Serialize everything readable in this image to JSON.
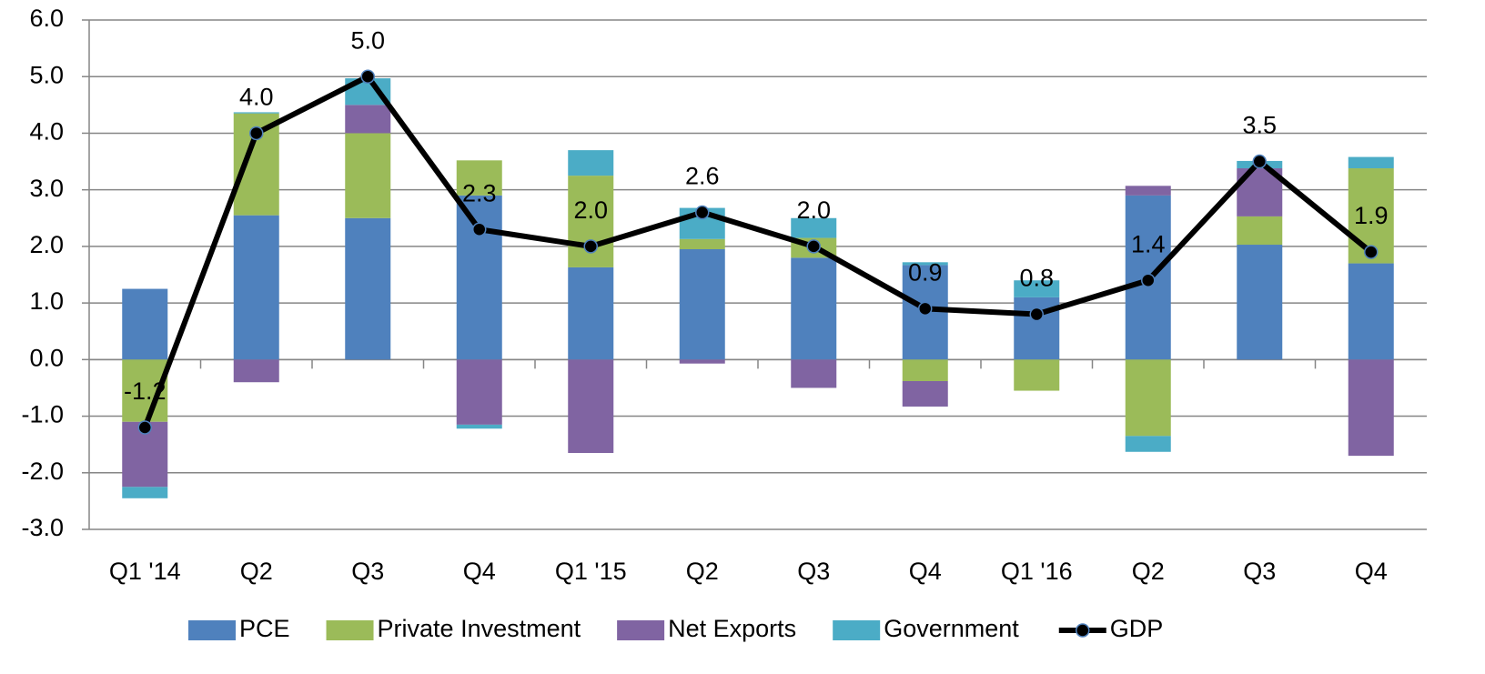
{
  "chart_data": {
    "type": "bar",
    "categories": [
      "Q1 '14",
      "Q2",
      "Q3",
      "Q4",
      "Q1 '15",
      "Q2",
      "Q3",
      "Q4",
      "Q1 '16",
      "Q2",
      "Q3",
      "Q4"
    ],
    "series": [
      {
        "name": "PCE",
        "color": "#4f81bd",
        "values": [
          1.25,
          2.55,
          2.5,
          2.9,
          1.63,
          1.95,
          1.8,
          1.67,
          1.1,
          2.9,
          2.03,
          1.7
        ]
      },
      {
        "name": "Private Investment",
        "color": "#9bbb59",
        "values": [
          -1.1,
          1.8,
          1.5,
          0.62,
          1.62,
          0.18,
          0.35,
          -0.38,
          -0.55,
          -1.35,
          0.5,
          1.68
        ]
      },
      {
        "name": "Net Exports",
        "color": "#8064a2",
        "values": [
          -1.15,
          -0.4,
          0.5,
          -1.15,
          -1.65,
          -0.07,
          -0.5,
          -0.45,
          0,
          0.17,
          0.85,
          -1.7
        ]
      },
      {
        "name": "Government",
        "color": "#4bacc6",
        "values": [
          -0.2,
          0.02,
          0.47,
          -0.07,
          0.45,
          0.55,
          0.35,
          0.05,
          0.3,
          -0.28,
          0.13,
          0.2
        ]
      },
      {
        "name": "GDP",
        "type": "line",
        "color": "#000000",
        "values": [
          -1.2,
          4.0,
          5.0,
          2.3,
          2.0,
          2.6,
          2.0,
          0.9,
          0.8,
          1.4,
          3.5,
          1.9
        ],
        "value_labels": [
          "-1.2",
          "4.0",
          "5.0",
          "2.3",
          "2.0",
          "2.6",
          "2.0",
          "0.9",
          "0.8",
          "1.4",
          "3.5",
          "1.9"
        ]
      }
    ],
    "ylim": [
      -3,
      6
    ],
    "yticks": [
      {
        "value": -3,
        "label": "-3.0"
      },
      {
        "value": -2,
        "label": "-2.0"
      },
      {
        "value": -1,
        "label": "-1.0"
      },
      {
        "value": 0,
        "label": "0.0"
      },
      {
        "value": 1,
        "label": "1.0"
      },
      {
        "value": 2,
        "label": "2.0"
      },
      {
        "value": 3,
        "label": "3.0"
      },
      {
        "value": 4,
        "label": "4.0"
      },
      {
        "value": 5,
        "label": "5.0"
      },
      {
        "value": 6,
        "label": "6.0"
      }
    ],
    "grid": true,
    "legend": "bottom"
  }
}
